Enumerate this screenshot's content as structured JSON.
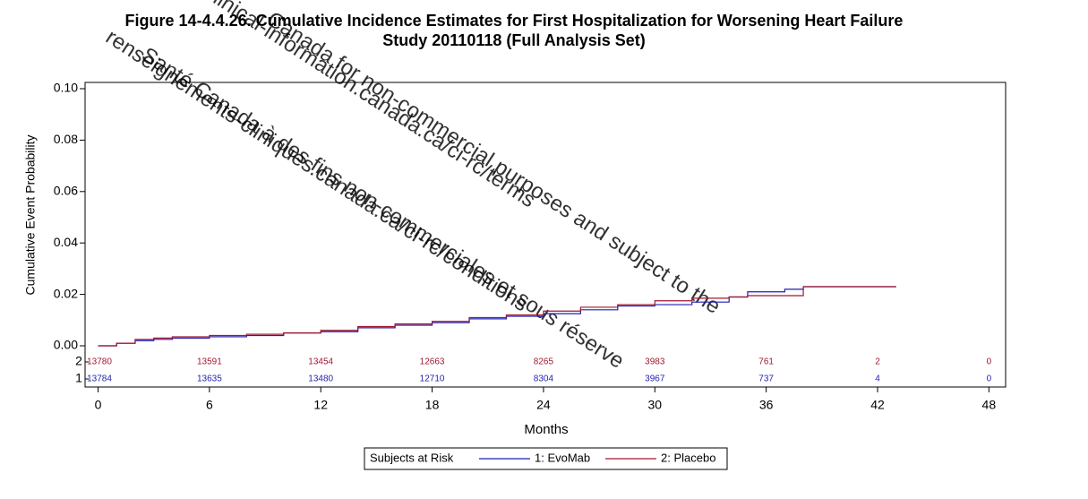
{
  "chart_data": {
    "type": "step",
    "title": "Figure 14-4.4.26.  Cumulative Incidence Estimates for First Hospitalization for Worsening Heart Failure",
    "subtitle": "Study 20110118 (Full Analysis Set)",
    "x_label": "Months",
    "y_label": "Cumulative Event Probability",
    "x": [
      0,
      1,
      2,
      3,
      4,
      6,
      8,
      10,
      12,
      14,
      16,
      18,
      20,
      22,
      24,
      26,
      28,
      30,
      32,
      34,
      35,
      36,
      37,
      38,
      43
    ],
    "series": [
      {
        "name": "1: EvoMab",
        "color": "#1f1fb4",
        "values": [
          0,
          0.001,
          0.002,
          0.0025,
          0.003,
          0.0035,
          0.004,
          0.005,
          0.0055,
          0.007,
          0.008,
          0.009,
          0.0105,
          0.0115,
          0.0125,
          0.014,
          0.0155,
          0.016,
          0.017,
          0.019,
          0.021,
          0.021,
          0.022,
          0.023,
          0.023
        ]
      },
      {
        "name": "2: Placebo",
        "color": "#a01830",
        "values": [
          0,
          0.001,
          0.0025,
          0.003,
          0.0035,
          0.004,
          0.0045,
          0.005,
          0.006,
          0.0075,
          0.0085,
          0.0095,
          0.011,
          0.012,
          0.0135,
          0.015,
          0.016,
          0.0175,
          0.0185,
          0.019,
          0.0195,
          0.0195,
          0.0195,
          0.023,
          0.023
        ]
      }
    ],
    "xlim": [
      -0.7,
      48.9
    ],
    "xticks": [
      0,
      6,
      12,
      18,
      24,
      30,
      36,
      42,
      48
    ],
    "ylim": [
      0,
      0.1
    ],
    "yticks": [
      {
        "value": 0,
        "label": "0.00"
      },
      {
        "value": 0.02,
        "label": "0.02"
      },
      {
        "value": 0.04,
        "label": "0.04"
      },
      {
        "value": 0.06,
        "label": "0.06"
      },
      {
        "value": 0.08,
        "label": "0.08"
      },
      {
        "value": 0.1,
        "label": "0.10"
      }
    ],
    "risk_table": {
      "label": "Subjects at Risk",
      "rows": [
        {
          "group": "2",
          "color": "#a01830",
          "values": [
            13780,
            13591,
            13454,
            12663,
            8265,
            3983,
            761,
            2,
            0
          ]
        },
        {
          "group": "1",
          "color": "#1f1fb4",
          "values": [
            13784,
            13635,
            13480,
            12710,
            8304,
            3967,
            737,
            4,
            0
          ]
        }
      ]
    },
    "watermark": [
      "clinical-information.canada.ca/ci-rc/terms",
      "Canada for non-commercial purposes and subject to the",
      "renseignements-cliniques.canada.ca/ci-rc/conditions",
      "Santé Canada à des fins non-commerciales et sous réserve"
    ]
  }
}
